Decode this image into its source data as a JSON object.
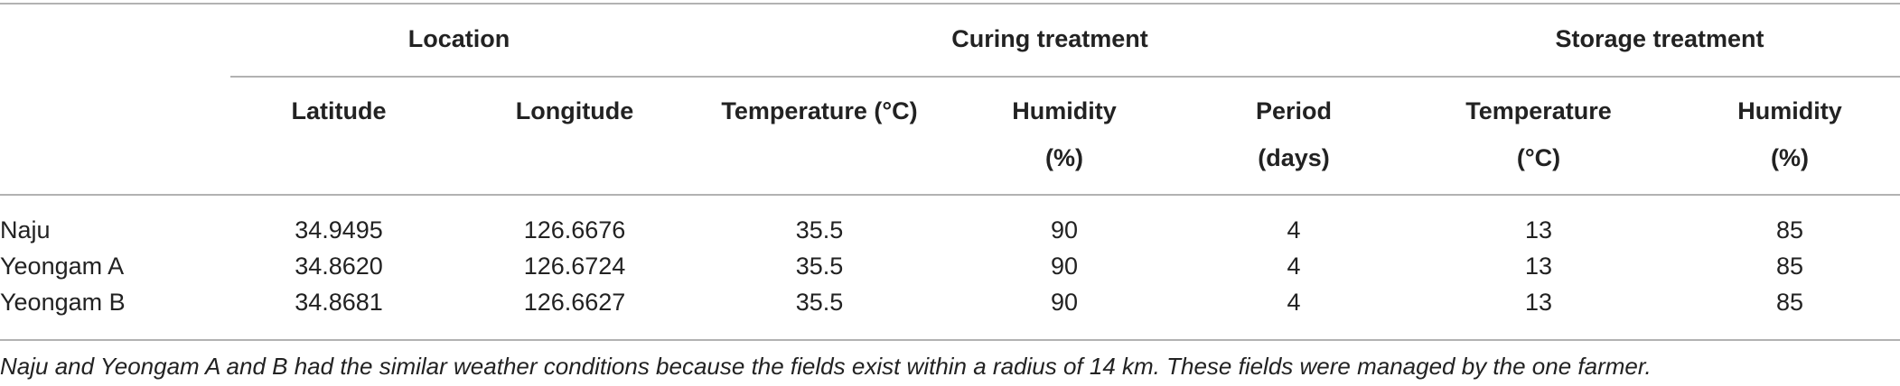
{
  "table": {
    "groups": [
      "Location",
      "Curing treatment",
      "Storage treatment"
    ],
    "columns": [
      [
        "Latitude"
      ],
      [
        "Longitude"
      ],
      [
        "Temperature (°C)"
      ],
      [
        "Humidity",
        "(%)"
      ],
      [
        "Period",
        "(days)"
      ],
      [
        "Temperature",
        "(°C)"
      ],
      [
        "Humidity",
        "(%)"
      ]
    ],
    "rows": [
      [
        "Naju",
        "34.9495",
        "126.6676",
        "35.5",
        "90",
        "4",
        "13",
        "85"
      ],
      [
        "Yeongam A",
        "34.8620",
        "126.6724",
        "35.5",
        "90",
        "4",
        "13",
        "85"
      ],
      [
        "Yeongam B",
        "34.8681",
        "126.6627",
        "35.5",
        "90",
        "4",
        "13",
        "85"
      ]
    ],
    "footnote": "Naju and Yeongam A and B had the similar weather conditions because the fields exist within a radius of 14 km. These fields were managed by the one farmer."
  }
}
